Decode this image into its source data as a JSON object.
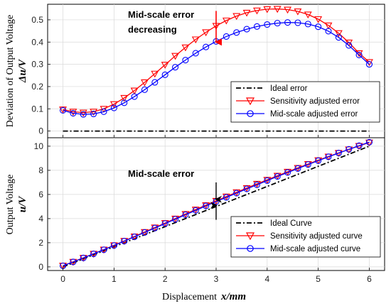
{
  "colors": {
    "ideal": "#000000",
    "sensitivity": "#ff0000",
    "midscale": "#0000ff",
    "grid": "#d9d9d9"
  },
  "chart_data": [
    {
      "type": "line",
      "panel": "top",
      "ylabel_main": "Deviation of Output Voltage",
      "ylabel_sub": "Δu/V",
      "xlim": [
        -0.3,
        6.3
      ],
      "ylim": [
        -0.03,
        0.57
      ],
      "yticks": [
        "0",
        "0.1",
        "0.2",
        "0.3",
        "0.4",
        "0.5"
      ],
      "annotation": {
        "line1": "Mid-scale error",
        "line2": "decreasing",
        "arrow_x": 3,
        "arrow_from": 0.54,
        "arrow_to": 0.4
      },
      "legend": {
        "position": "lower-right",
        "entries": [
          "Ideal error",
          "Sensitivity adjusted error",
          "Mid-scale adjusted error"
        ]
      },
      "series": [
        {
          "name": "Ideal error",
          "style": "dashdot",
          "marker": "none",
          "x": [
            0,
            6
          ],
          "y": [
            0,
            0
          ]
        },
        {
          "name": "Sensitivity adjusted error",
          "style": "solid",
          "marker": "triangle-down",
          "x": [
            0,
            0.2,
            0.4,
            0.6,
            0.8,
            1.0,
            1.2,
            1.4,
            1.6,
            1.8,
            2.0,
            2.2,
            2.4,
            2.6,
            2.8,
            3.0,
            3.2,
            3.4,
            3.6,
            3.8,
            4.0,
            4.2,
            4.4,
            4.6,
            4.8,
            5.0,
            5.2,
            5.4,
            5.6,
            5.8,
            6.0
          ],
          "y": [
            0.097,
            0.087,
            0.083,
            0.087,
            0.1,
            0.121,
            0.149,
            0.182,
            0.219,
            0.258,
            0.298,
            0.338,
            0.376,
            0.412,
            0.444,
            0.473,
            0.497,
            0.517,
            0.532,
            0.542,
            0.548,
            0.549,
            0.546,
            0.538,
            0.524,
            0.503,
            0.475,
            0.44,
            0.398,
            0.35,
            0.31
          ]
        },
        {
          "name": "Mid-scale adjusted error",
          "style": "solid",
          "marker": "circle",
          "x": [
            0,
            0.2,
            0.4,
            0.6,
            0.8,
            1.0,
            1.2,
            1.4,
            1.6,
            1.8,
            2.0,
            2.2,
            2.4,
            2.6,
            2.8,
            3.0,
            3.2,
            3.4,
            3.6,
            3.8,
            4.0,
            4.2,
            4.4,
            4.6,
            4.8,
            5.0,
            5.2,
            5.4,
            5.6,
            5.8,
            6.0
          ],
          "y": [
            0.093,
            0.08,
            0.075,
            0.077,
            0.087,
            0.104,
            0.127,
            0.155,
            0.186,
            0.219,
            0.253,
            0.287,
            0.319,
            0.35,
            0.378,
            0.403,
            0.425,
            0.443,
            0.458,
            0.47,
            0.479,
            0.485,
            0.488,
            0.487,
            0.481,
            0.469,
            0.449,
            0.421,
            0.385,
            0.342,
            0.3
          ]
        }
      ]
    },
    {
      "type": "line",
      "panel": "bottom",
      "ylabel_main": "Output Voltage",
      "ylabel_sub": "u/V",
      "xlabel_main": "Displacement",
      "xlabel_sub": "x/mm",
      "xlim": [
        -0.3,
        6.3
      ],
      "ylim": [
        -0.3,
        10.7
      ],
      "xticks": [
        "0",
        "1",
        "2",
        "3",
        "4",
        "5",
        "6"
      ],
      "yticks": [
        "0",
        "2",
        "4",
        "6",
        "8",
        "10"
      ],
      "annotation": {
        "label": "Mid-scale error",
        "x": 3,
        "top_from": 7.0,
        "top_to": 5.6,
        "bottom_from": 3.9,
        "bottom_to": 5.1
      },
      "legend": {
        "position": "lower-right",
        "entries": [
          "Ideal Curve",
          "Sensitivity adjusted curve",
          "Mid-scale adjusted curve"
        ]
      },
      "series": [
        {
          "name": "Ideal Curve",
          "style": "dashdot",
          "marker": "none",
          "x": [
            0,
            6
          ],
          "y": [
            0,
            10
          ]
        },
        {
          "name": "Sensitivity adjusted curve",
          "style": "solid",
          "marker": "triangle-down",
          "x": [
            0,
            0.2,
            0.4,
            0.6,
            0.8,
            1.0,
            1.2,
            1.4,
            1.6,
            1.8,
            2.0,
            2.2,
            2.4,
            2.6,
            2.8,
            3.0,
            3.2,
            3.4,
            3.6,
            3.8,
            4.0,
            4.2,
            4.4,
            4.6,
            4.8,
            5.0,
            5.2,
            5.4,
            5.6,
            5.8,
            6.0
          ],
          "y": [
            0.1,
            0.42,
            0.75,
            1.09,
            1.43,
            1.79,
            2.15,
            2.52,
            2.89,
            3.26,
            3.63,
            4.0,
            4.38,
            4.75,
            5.11,
            5.47,
            5.83,
            6.18,
            6.53,
            6.88,
            7.21,
            7.55,
            7.88,
            8.2,
            8.52,
            8.84,
            9.14,
            9.44,
            9.73,
            10.02,
            10.3
          ]
        },
        {
          "name": "Mid-scale adjusted curve",
          "style": "solid",
          "marker": "circle",
          "x": [
            0,
            0.2,
            0.4,
            0.6,
            0.8,
            1.0,
            1.2,
            1.4,
            1.6,
            1.8,
            2.0,
            2.2,
            2.4,
            2.6,
            2.8,
            3.0,
            3.2,
            3.4,
            3.6,
            3.8,
            4.0,
            4.2,
            4.4,
            4.6,
            4.8,
            5.0,
            5.2,
            5.4,
            5.6,
            5.8,
            6.0
          ],
          "y": [
            0.09,
            0.41,
            0.74,
            1.08,
            1.42,
            1.77,
            2.13,
            2.49,
            2.85,
            3.22,
            3.59,
            3.95,
            4.32,
            4.68,
            5.05,
            5.41,
            5.76,
            6.11,
            6.46,
            6.8,
            7.15,
            7.49,
            7.82,
            8.15,
            8.48,
            8.8,
            9.12,
            9.43,
            9.74,
            10.04,
            10.33
          ]
        }
      ]
    }
  ]
}
